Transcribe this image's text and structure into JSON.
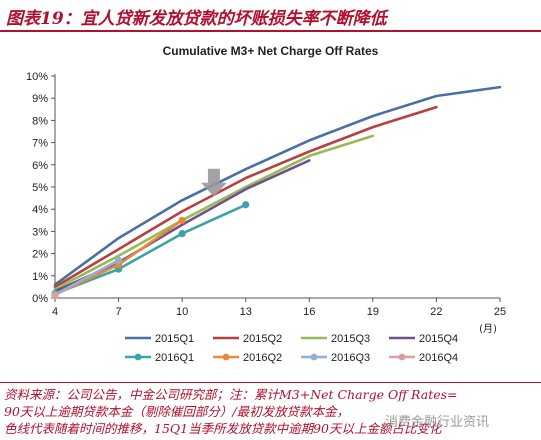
{
  "figure": {
    "title": "图表19：宜人贷新发放贷款的坏账损失率不断降低",
    "source_lines": [
      "资料来源：公司公告，中金公司研究部；注：累计M3+Net Charge Off Rates=",
      "90天以上逾期贷款本金（剔除催回部分）/最初发放贷款本金，",
      "色线代表随着时间的推移，15Q1当季所发放贷款中逾期90天以上金额占比变化"
    ],
    "watermark": "消费金融行业资讯"
  },
  "chart_data": {
    "type": "line",
    "title": "Cumulative M3+ Net Charge Off Rates",
    "x_unit": "(月)",
    "xlim": [
      4,
      25
    ],
    "ylim": [
      0,
      10
    ],
    "x_ticks": [
      4,
      7,
      10,
      13,
      16,
      19,
      22,
      25
    ],
    "y_ticks": [
      "0%",
      "1%",
      "2%",
      "3%",
      "4%",
      "5%",
      "6%",
      "7%",
      "8%",
      "9%",
      "10%"
    ],
    "y_tick_values": [
      0,
      1,
      2,
      3,
      4,
      5,
      6,
      7,
      8,
      9,
      10
    ],
    "grid": false,
    "legend_position": "bottom",
    "series": [
      {
        "name": "2015Q1",
        "color": "#4a6fa5",
        "marker": false,
        "x": [
          4,
          7,
          10,
          13,
          16,
          19,
          22,
          25
        ],
        "y": [
          0.6,
          2.7,
          4.4,
          5.8,
          7.1,
          8.2,
          9.1,
          9.5
        ]
      },
      {
        "name": "2015Q2",
        "color": "#b8403f",
        "marker": false,
        "x": [
          4,
          7,
          10,
          13,
          16,
          19,
          22
        ],
        "y": [
          0.5,
          2.2,
          3.9,
          5.4,
          6.6,
          7.7,
          8.6
        ]
      },
      {
        "name": "2015Q3",
        "color": "#98b954",
        "marker": false,
        "x": [
          4,
          7,
          10,
          13,
          16,
          19
        ],
        "y": [
          0.4,
          1.9,
          3.5,
          5.0,
          6.4,
          7.3
        ]
      },
      {
        "name": "2015Q4",
        "color": "#6e528f",
        "marker": false,
        "x": [
          4,
          7,
          10,
          13,
          16
        ],
        "y": [
          0.3,
          1.6,
          3.3,
          4.9,
          6.2
        ]
      },
      {
        "name": "2016Q1",
        "color": "#3ba3a9",
        "marker": true,
        "x": [
          4,
          7,
          10,
          13
        ],
        "y": [
          0.2,
          1.3,
          2.9,
          4.2
        ]
      },
      {
        "name": "2016Q2",
        "color": "#e58a3a",
        "marker": true,
        "x": [
          4,
          7,
          10
        ],
        "y": [
          0.15,
          1.5,
          3.5
        ]
      },
      {
        "name": "2016Q3",
        "color": "#94aed3",
        "marker": true,
        "x": [
          4,
          7
        ],
        "y": [
          0.15,
          1.7
        ]
      },
      {
        "name": "2016Q4",
        "color": "#d7a0a0",
        "marker": true,
        "x": [
          4
        ],
        "y": [
          0.1
        ]
      }
    ],
    "annotations": [
      {
        "type": "arrow",
        "direction": "down",
        "color": "#999999",
        "label": ""
      }
    ]
  }
}
